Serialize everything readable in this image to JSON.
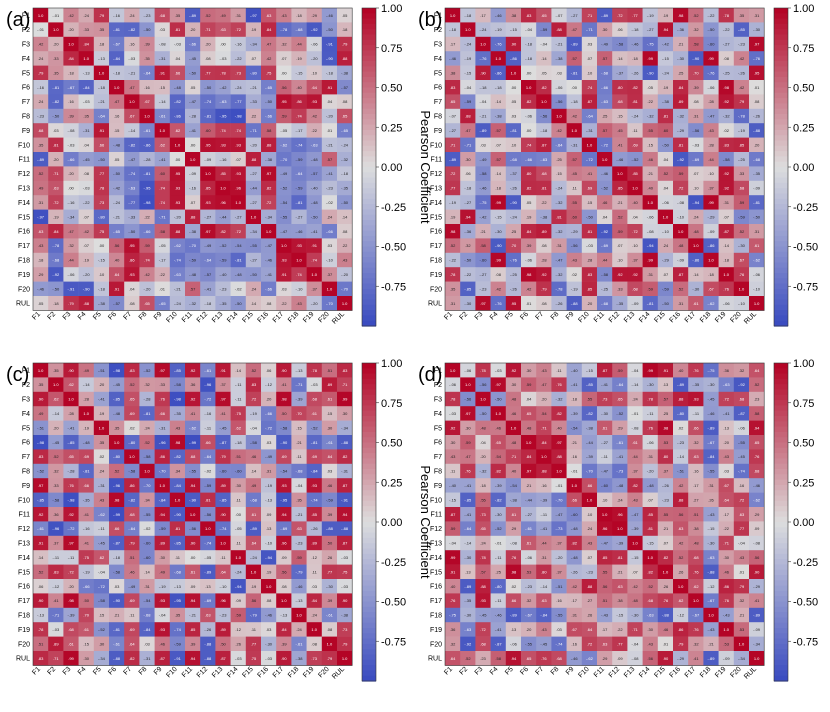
{
  "figure": {
    "description_free": true
  },
  "chart_data": [
    {
      "type": "heatmap",
      "panel_label": "(a)",
      "row_labels": [
        "F1",
        "F2",
        "F3",
        "F4",
        "F5",
        "F6",
        "F7",
        "F8",
        "F9",
        "F10",
        "F11",
        "F12",
        "F13",
        "F14",
        "F15",
        "F16",
        "F17",
        "F18",
        "F19",
        "F20",
        "RUL"
      ],
      "col_labels": [
        "F1",
        "F2",
        "F3",
        "F4",
        "F5",
        "F6",
        "F7",
        "F8",
        "F9",
        "F10",
        "F11",
        "F12",
        "F13",
        "F14",
        "F15",
        "F16",
        "F17",
        "F18",
        "F19",
        "F20",
        "RUL"
      ],
      "seed": 11,
      "colorbar": {
        "label": "Pearson Coefficient",
        "range": [
          -1.0,
          1.0
        ],
        "ticks": [
          "1.00",
          "0.75",
          "0.50",
          "0.25",
          "0.00",
          "-0.25",
          "-0.50",
          "-0.75"
        ],
        "colors": {
          "neg": "#3b4cc0",
          "mid": "#dddddd",
          "pos": "#b40426"
        }
      }
    },
    {
      "type": "heatmap",
      "panel_label": "(b)",
      "row_labels": [
        "F1",
        "F2",
        "F3",
        "F4",
        "F5",
        "F6",
        "F7",
        "F8",
        "F9",
        "F10",
        "F11",
        "F12",
        "F13",
        "F14",
        "F15",
        "F16",
        "F17",
        "F18",
        "F19",
        "F20",
        "RUL"
      ],
      "col_labels": [
        "F1",
        "F2",
        "F3",
        "F4",
        "F5",
        "F6",
        "F7",
        "F8",
        "F9",
        "F10",
        "F11",
        "F12",
        "F13",
        "F14",
        "F15",
        "F16",
        "F17",
        "F18",
        "F19",
        "F20",
        "RUL"
      ],
      "seed": 23,
      "colorbar": {
        "label": "Pearson Coefficient",
        "range": [
          -1.0,
          1.0
        ],
        "ticks": [
          "1.00",
          "0.75",
          "0.50",
          "0.25",
          "0.00",
          "-0.25",
          "-0.50",
          "-0.75"
        ],
        "colors": {
          "neg": "#3b4cc0",
          "mid": "#dddddd",
          "pos": "#b40426"
        }
      }
    },
    {
      "type": "heatmap",
      "panel_label": "(c)",
      "row_labels": [
        "F1",
        "F2",
        "F3",
        "F4",
        "F5",
        "F6",
        "F7",
        "F8",
        "F9",
        "F10",
        "F11",
        "F12",
        "F13",
        "F14",
        "F15",
        "F16",
        "F17",
        "F18",
        "F19",
        "F20",
        "RUL"
      ],
      "col_labels": [
        "F1",
        "F2",
        "F3",
        "F4",
        "F5",
        "F6",
        "F7",
        "F8",
        "F9",
        "F10",
        "F11",
        "F12",
        "F13",
        "F14",
        "F15",
        "F16",
        "F17",
        "F18",
        "F19",
        "F20",
        "RUL"
      ],
      "seed": 37,
      "colorbar": {
        "label": "Pearson Coefficient",
        "range": [
          -1.0,
          1.0
        ],
        "ticks": [
          "1.00",
          "0.75",
          "0.50",
          "0.25",
          "0.00",
          "-0.25",
          "-0.50",
          "-0.75"
        ],
        "colors": {
          "neg": "#3b4cc0",
          "mid": "#dddddd",
          "pos": "#b40426"
        }
      }
    },
    {
      "type": "heatmap",
      "panel_label": "(d)",
      "row_labels": [
        "F1",
        "F2",
        "F3",
        "F4",
        "F5",
        "F6",
        "F7",
        "F8",
        "F9",
        "F10",
        "F11",
        "F12",
        "F13",
        "F14",
        "F15",
        "F16",
        "F17",
        "F18",
        "F19",
        "F20",
        "RUL"
      ],
      "col_labels": [
        "F1",
        "F2",
        "F3",
        "F4",
        "F5",
        "F6",
        "F7",
        "F8",
        "F9",
        "F10",
        "F11",
        "F12",
        "F13",
        "F14",
        "F15",
        "F16",
        "F17",
        "F18",
        "F19",
        "F20",
        "RUL"
      ],
      "seed": 53,
      "colorbar": {
        "label": "Pearson Coefficient",
        "range": [
          -1.0,
          1.0
        ],
        "ticks": [
          "1.00",
          "0.75",
          "0.50",
          "0.25",
          "0.00",
          "-0.25",
          "-0.50",
          "-0.75"
        ],
        "colors": {
          "neg": "#3b4cc0",
          "mid": "#dddddd",
          "pos": "#b40426"
        }
      }
    }
  ]
}
